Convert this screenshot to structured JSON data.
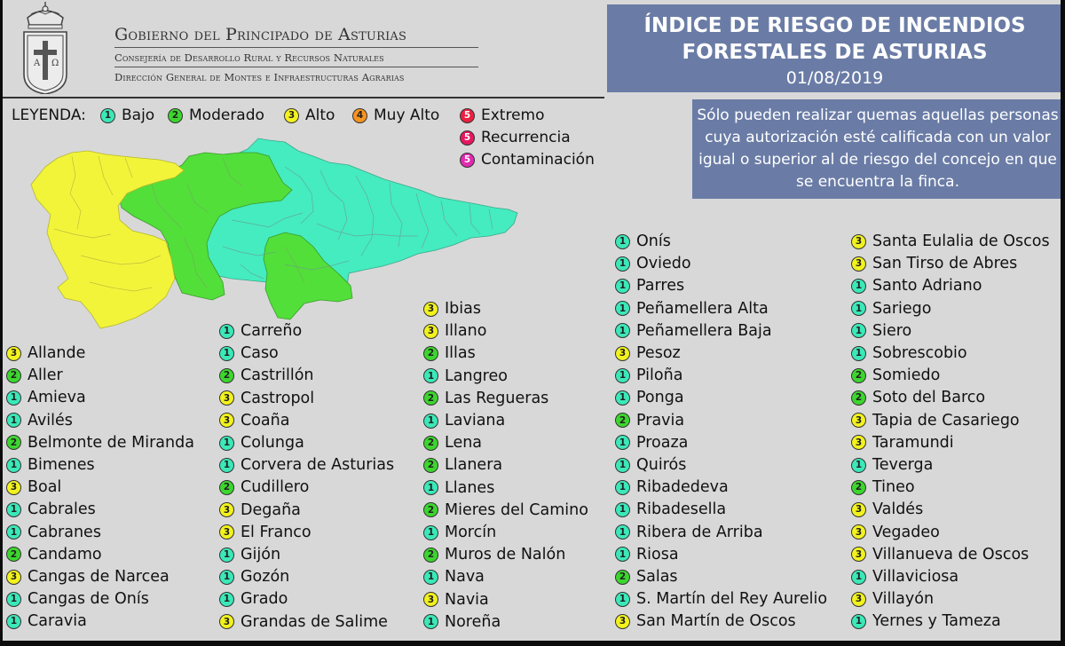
{
  "header": {
    "government": "Gobierno del Principado de Asturias",
    "consejeria": "Consejería de Desarrollo Rural y Recursos Naturales",
    "direccion": "Dirección General de Montes e Infraestructuras Agrarias",
    "title_line1": "ÍNDICE DE RIESGO DE INCENDIOS",
    "title_line2": "FORESTALES DE ASTURIAS",
    "date": "01/08/2019"
  },
  "notice": "Sólo pueden realizar quemas aquellas personas cuya autorización esté calificada con un valor igual o superior al de riesgo del concejo en que se encuentra la finca.",
  "legend": {
    "label": "LEYENDA:",
    "items": [
      {
        "value": "1",
        "label": "Bajo",
        "color": "#3be8b8"
      },
      {
        "value": "2",
        "label": "Moderado",
        "color": "#3cd62e"
      },
      {
        "value": "3",
        "label": "Alto",
        "color": "#f2f21e"
      },
      {
        "value": "4",
        "label": "Muy Alto",
        "color": "#f79320"
      },
      {
        "value": "5",
        "label": "Extremo",
        "color": "#ea2040"
      },
      {
        "value": "5",
        "label": "Recurrencia",
        "color": "#e61760"
      },
      {
        "value": "5",
        "label": "Contaminación",
        "color": "#e02ab0"
      }
    ]
  },
  "colors": {
    "frame_bg": "#d8d8d8",
    "box_bg": "#6a7ca6",
    "low": "#3be8b8",
    "moderate": "#3cd62e",
    "high": "#f2f21e"
  },
  "municipalities": {
    "col1": [
      {
        "name": "Allande",
        "level": 3
      },
      {
        "name": "Aller",
        "level": 2
      },
      {
        "name": "Amieva",
        "level": 1
      },
      {
        "name": "Avilés",
        "level": 1
      },
      {
        "name": "Belmonte de Miranda",
        "level": 2
      },
      {
        "name": "Bimenes",
        "level": 1
      },
      {
        "name": "Boal",
        "level": 3
      },
      {
        "name": "Cabrales",
        "level": 1
      },
      {
        "name": "Cabranes",
        "level": 1
      },
      {
        "name": "Candamo",
        "level": 2
      },
      {
        "name": "Cangas de Narcea",
        "level": 3
      },
      {
        "name": "Cangas de Onís",
        "level": 1
      },
      {
        "name": "Caravia",
        "level": 1
      }
    ],
    "col2": [
      {
        "name": "Carreño",
        "level": 1
      },
      {
        "name": "Caso",
        "level": 1
      },
      {
        "name": "Castrillón",
        "level": 2
      },
      {
        "name": "Castropol",
        "level": 3
      },
      {
        "name": "Coaña",
        "level": 3
      },
      {
        "name": "Colunga",
        "level": 1
      },
      {
        "name": "Corvera de Asturias",
        "level": 1
      },
      {
        "name": "Cudillero",
        "level": 2
      },
      {
        "name": "Degaña",
        "level": 3
      },
      {
        "name": "El Franco",
        "level": 3
      },
      {
        "name": "Gijón",
        "level": 1
      },
      {
        "name": "Gozón",
        "level": 1
      },
      {
        "name": "Grado",
        "level": 1
      },
      {
        "name": "Grandas de Salime",
        "level": 3
      }
    ],
    "col3": [
      {
        "name": "Ibias",
        "level": 3
      },
      {
        "name": "Illano",
        "level": 3
      },
      {
        "name": "Illas",
        "level": 2
      },
      {
        "name": "Langreo",
        "level": 1
      },
      {
        "name": "Las Regueras",
        "level": 2
      },
      {
        "name": "Laviana",
        "level": 1
      },
      {
        "name": "Lena",
        "level": 2
      },
      {
        "name": "Llanera",
        "level": 2
      },
      {
        "name": "Llanes",
        "level": 1
      },
      {
        "name": "Mieres del Camino",
        "level": 2
      },
      {
        "name": "Morcín",
        "level": 1
      },
      {
        "name": "Muros de Nalón",
        "level": 2
      },
      {
        "name": "Nava",
        "level": 1
      },
      {
        "name": "Navia",
        "level": 3
      },
      {
        "name": "Noreña",
        "level": 1
      }
    ],
    "col4": [
      {
        "name": "Onís",
        "level": 1
      },
      {
        "name": "Oviedo",
        "level": 1
      },
      {
        "name": "Parres",
        "level": 1
      },
      {
        "name": "Peñamellera Alta",
        "level": 1
      },
      {
        "name": "Peñamellera Baja",
        "level": 1
      },
      {
        "name": "Pesoz",
        "level": 3
      },
      {
        "name": "Piloña",
        "level": 1
      },
      {
        "name": "Ponga",
        "level": 1
      },
      {
        "name": "Pravia",
        "level": 2
      },
      {
        "name": "Proaza",
        "level": 1
      },
      {
        "name": "Quirós",
        "level": 1
      },
      {
        "name": "Ribadedeva",
        "level": 1
      },
      {
        "name": "Ribadesella",
        "level": 1
      },
      {
        "name": "Ribera de Arriba",
        "level": 1
      },
      {
        "name": "Riosa",
        "level": 1
      },
      {
        "name": "Salas",
        "level": 2
      },
      {
        "name": "S. Martín del Rey Aurelio",
        "level": 1
      },
      {
        "name": "San Martín de Oscos",
        "level": 3
      }
    ],
    "col5": [
      {
        "name": "Santa Eulalia de Oscos",
        "level": 3
      },
      {
        "name": "San Tirso de Abres",
        "level": 3
      },
      {
        "name": "Santo Adriano",
        "level": 1
      },
      {
        "name": "Sariego",
        "level": 1
      },
      {
        "name": "Siero",
        "level": 1
      },
      {
        "name": "Sobrescobio",
        "level": 1
      },
      {
        "name": "Somiedo",
        "level": 2
      },
      {
        "name": "Soto del Barco",
        "level": 2
      },
      {
        "name": "Tapia de Casariego",
        "level": 3
      },
      {
        "name": "Taramundi",
        "level": 3
      },
      {
        "name": "Teverga",
        "level": 1
      },
      {
        "name": "Tineo",
        "level": 2
      },
      {
        "name": "Valdés",
        "level": 3
      },
      {
        "name": "Vegadeo",
        "level": 3
      },
      {
        "name": "Villanueva de Oscos",
        "level": 3
      },
      {
        "name": "Villaviciosa",
        "level": 1
      },
      {
        "name": "Villayón",
        "level": 3
      },
      {
        "name": "Yernes y Tameza",
        "level": 1
      }
    ]
  }
}
